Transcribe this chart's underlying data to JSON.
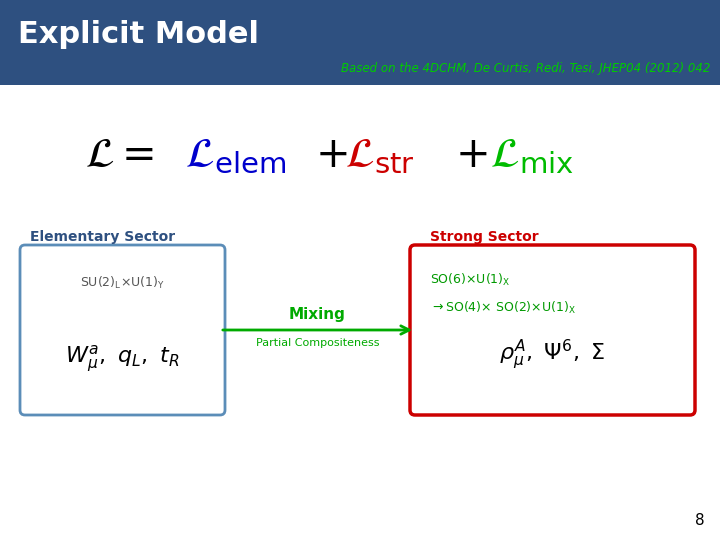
{
  "title": "Explicit Model",
  "subtitle": "Based on the 4DCHM, De Curtis, Redi, Tesi, JHEP04 (2012) 042",
  "header_bg": "#2E5080",
  "header_text_color": "#FFFFFF",
  "subtitle_color": "#00CC00",
  "slide_bg": "#FFFFFF",
  "page_number": "8",
  "lagrangian_elem_color": "#0000CC",
  "lagrangian_str_color": "#CC0000",
  "lagrangian_mix_color": "#00BB00",
  "elem_label": "Elementary Sector",
  "elem_label_color": "#2E5080",
  "elem_box_border": "#5B8DB8",
  "strong_label": "Strong Sector",
  "strong_label_color": "#CC0000",
  "strong_box_border": "#CC0000",
  "mixing_label": "Mixing",
  "mixing_label_color": "#00AA00",
  "partial_label": "Partial Compositeness",
  "partial_label_color": "#00AA00",
  "arrow_color": "#00AA00"
}
